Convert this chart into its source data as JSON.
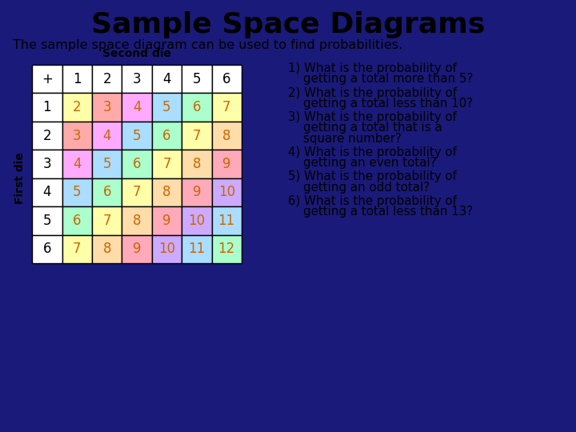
{
  "title": "Sample Space Diagrams",
  "subtitle": "The sample space diagram can be used to find probabilities.",
  "second_die_label": "Second die",
  "first_die_label": "First die",
  "questions": [
    [
      "1) What is the probability of",
      "    getting a total more than 5?"
    ],
    [
      "2) What is the probability of",
      "    getting a total less than 10?"
    ],
    [
      "3) What is the probability of",
      "    getting a total that is a",
      "    square number?"
    ],
    [
      "4) What is the probability of",
      "    getting an even total?"
    ],
    [
      "5) What is the probability of",
      "    getting an odd total?"
    ],
    [
      "6) What is the probability of",
      "    getting a total less than 13?"
    ]
  ],
  "header_row": [
    "+",
    "1",
    "2",
    "3",
    "4",
    "5",
    "6"
  ],
  "row_labels": [
    "1",
    "2",
    "3",
    "4",
    "5",
    "6"
  ],
  "table_values": [
    [
      2,
      3,
      4,
      5,
      6,
      7
    ],
    [
      3,
      4,
      5,
      6,
      7,
      8
    ],
    [
      4,
      5,
      6,
      7,
      8,
      9
    ],
    [
      5,
      6,
      7,
      8,
      9,
      10
    ],
    [
      6,
      7,
      8,
      9,
      10,
      11
    ],
    [
      7,
      8,
      9,
      10,
      11,
      12
    ]
  ],
  "cell_colors": {
    "2": "#ffffaa",
    "3": "#ffaaaa",
    "4": "#ffaaff",
    "5": "#aaddff",
    "6": "#aaffcc",
    "7": "#ffffaa",
    "8": "#ffddaa",
    "9": "#ffaabb",
    "10": "#ccaaff",
    "11": "#aaddff",
    "12": "#aaffcc"
  },
  "outer_border_color": "#1a1a7a",
  "bg_color": "#ffffff",
  "header_bg": "#ffffff",
  "text_color_number": "#cc6600",
  "text_color_header": "#000000",
  "border_color": "#000000",
  "title_fontsize": 26,
  "subtitle_fontsize": 11.5,
  "table_fontsize": 12,
  "question_fontsize": 10.8,
  "second_die_fontsize": 10,
  "first_die_fontsize": 10
}
